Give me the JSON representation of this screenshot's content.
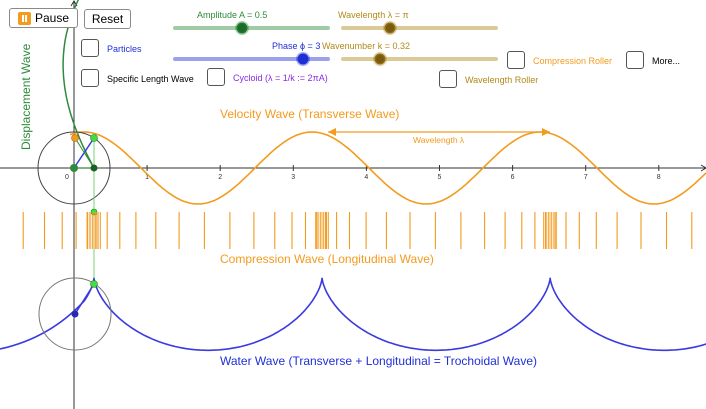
{
  "toolbar": {
    "pause_label": "Pause",
    "reset_label": "Reset"
  },
  "sliders": {
    "amplitude": {
      "label": "Amplitude A = 0.5",
      "color": "#2e8b3a",
      "value": 0.5
    },
    "wavelength": {
      "label": "Wavelength λ = π",
      "color": "#b08a1a",
      "value": 3.14159
    },
    "phase": {
      "label": "Phase ϕ = 3",
      "color": "#1f2fd6",
      "value": 3
    },
    "wavenumber": {
      "label": "Wavenumber k = 0.32",
      "color": "#b08a1a",
      "value": 0.32
    }
  },
  "checkboxes": {
    "particles": {
      "label": "Particles",
      "color": "#1f2fd6"
    },
    "specific_length": {
      "label": "Specific Length Wave",
      "color": "#000000"
    },
    "cycloid": {
      "label": "Cycloid (λ = 1/k := 2πA)",
      "color": "#8a2be2"
    },
    "compression_roller": {
      "label": "Compression Roller",
      "color": "#f29b1d"
    },
    "more": {
      "label": "More...",
      "color": "#000000"
    },
    "wavelength_roller": {
      "label": "Wavelength Roller",
      "color": "#b08a1a"
    }
  },
  "labels": {
    "displacement_axis": "Displacement Wave",
    "velocity_wave": "Velocity Wave (Transverse Wave)",
    "wavelength_marker": "Wavelength λ",
    "compression_wave": "Compression Wave (Longitudinal Wave)",
    "water_wave": "Water Wave (Transverse + Longitudinal = Trochoidal Wave)"
  },
  "axis": {
    "ticks": [
      "0",
      "1",
      "2",
      "3",
      "4",
      "5",
      "6",
      "7",
      "8"
    ]
  },
  "colors": {
    "orange": "#f29b1d",
    "blue": "#3a3ae0",
    "green": "#2e8b3a",
    "gray": "#666666"
  }
}
